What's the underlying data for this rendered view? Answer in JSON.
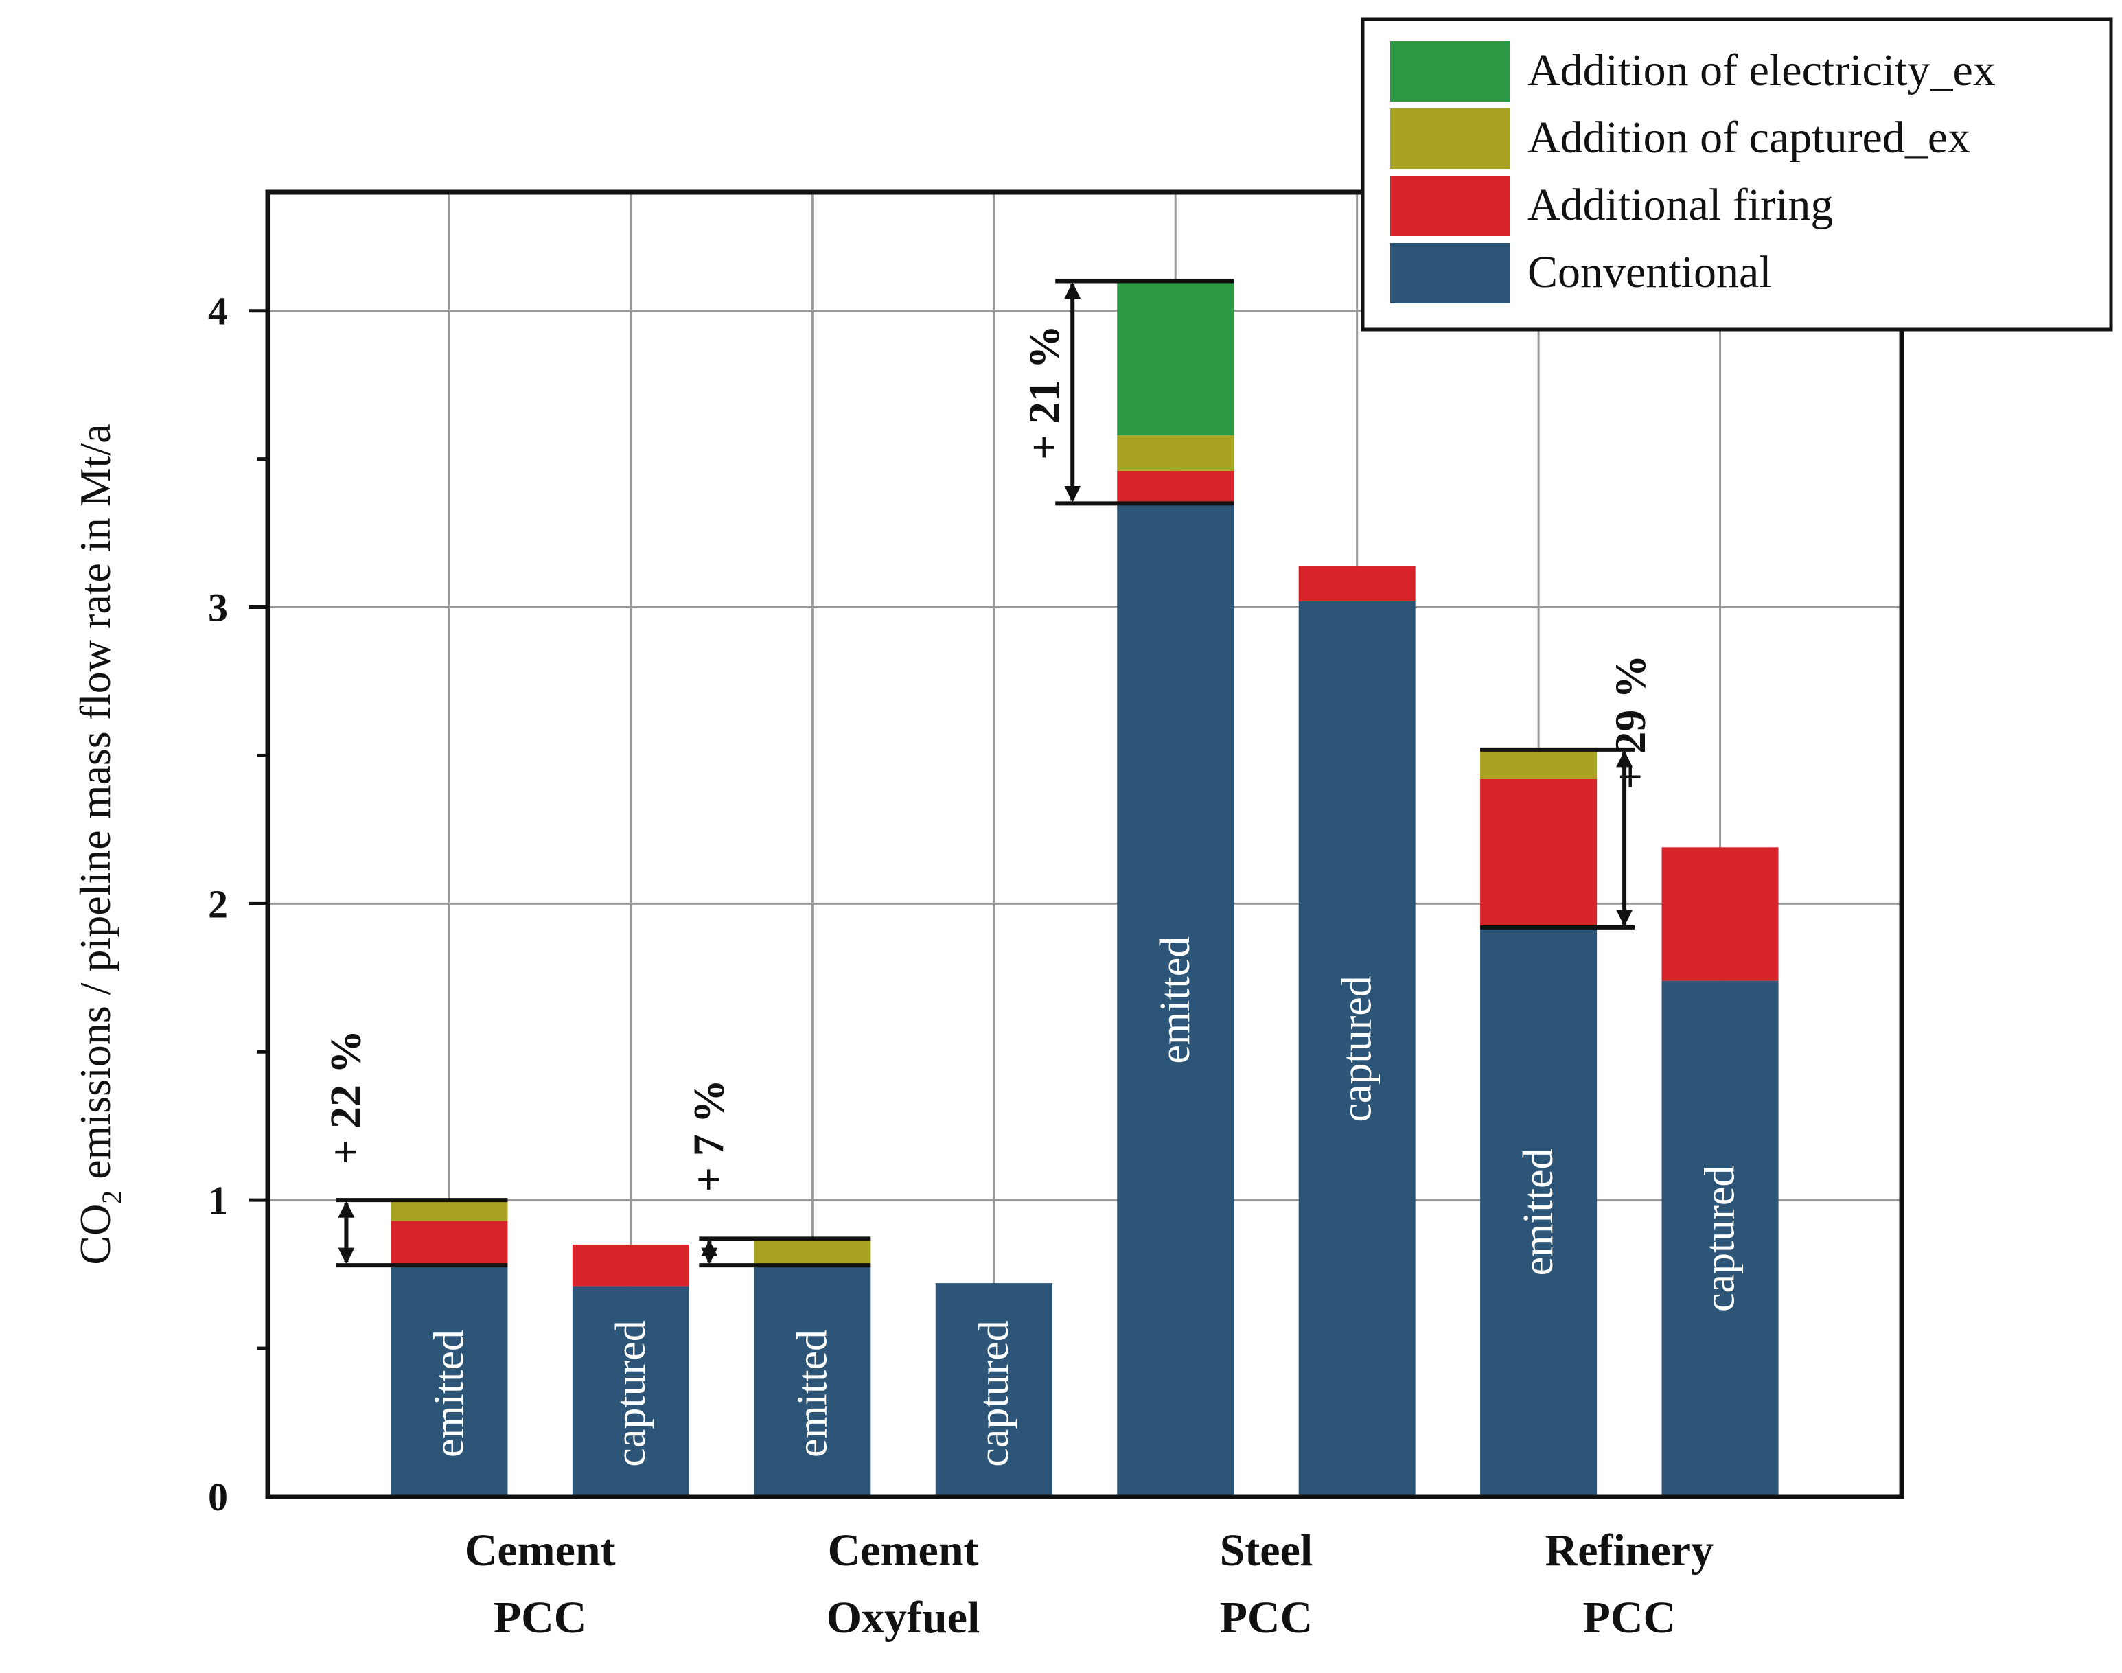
{
  "chart_data": {
    "type": "bar",
    "stacked": true,
    "ylabel_main": "CO",
    "ylabel_sub": "2",
    "ylabel_rest": " emissions / pipeline mass flow rate in Mt/a",
    "ylim": [
      0,
      4.4
    ],
    "yticks": [
      0,
      1,
      2,
      3,
      4
    ],
    "grid": true,
    "legend_position": "top-right",
    "groups": [
      {
        "line1": "Cement",
        "line2": "PCC"
      },
      {
        "line1": "Cement",
        "line2": "Oxyfuel"
      },
      {
        "line1": "Steel",
        "line2": "PCC"
      },
      {
        "line1": "Refinery",
        "line2": "PCC"
      }
    ],
    "bar_labels": [
      "emitted",
      "captured",
      "emitted",
      "captured",
      "emitted",
      "captured",
      "emitted",
      "captured"
    ],
    "series": [
      {
        "name": "Conventional",
        "color": "#2c5578",
        "values": [
          0.78,
          0.71,
          0.78,
          0.72,
          3.35,
          3.02,
          1.92,
          1.74
        ]
      },
      {
        "name": "Additional firing",
        "color": "#d9232a",
        "values": [
          0.15,
          0.14,
          0.0,
          0.0,
          0.11,
          0.12,
          0.5,
          0.45
        ]
      },
      {
        "name": "Addition of captured_ex",
        "color": "#a8a323",
        "values": [
          0.07,
          0.0,
          0.09,
          0.0,
          0.12,
          0.0,
          0.1,
          0.0
        ]
      },
      {
        "name": "Addition of electricity_ex",
        "color": "#2e9a45",
        "values": [
          0.0,
          0.0,
          0.0,
          0.0,
          0.52,
          0.0,
          0.0,
          0.0
        ]
      }
    ],
    "legend_order": [
      "Addition of electricity_ex",
      "Addition of captured_ex",
      "Additional firing",
      "Conventional"
    ],
    "annotations": [
      {
        "text": "+ 22 %",
        "bar": 0,
        "from": 0.78,
        "to": 1.0
      },
      {
        "text": "+ 7 %",
        "bar": 2,
        "from": 0.78,
        "to": 0.87
      },
      {
        "text": "+ 21 %",
        "bar": 4,
        "from": 3.35,
        "to": 4.1
      },
      {
        "text": "+ 29 %",
        "bar": 6,
        "from": 1.92,
        "to": 2.52
      }
    ]
  }
}
